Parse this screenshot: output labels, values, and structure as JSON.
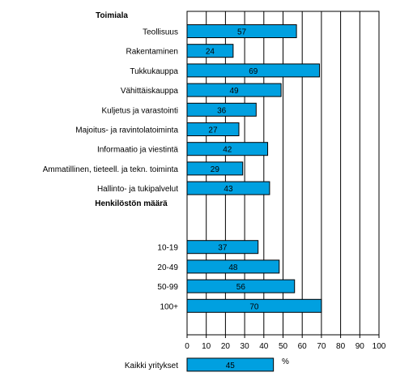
{
  "chart_data": {
    "type": "bar",
    "orientation": "horizontal",
    "groups": [
      {
        "title": "Toimiala",
        "categories": [
          "Teollisuus",
          "Rakentaminen",
          "Tukkukauppa",
          "Vähittäiskauppa",
          "Kuljetus ja varastointi",
          "Majoitus- ja ravintolatoiminta",
          "Informaatio ja viestintä",
          "Ammatillinen, tieteell. ja tekn. toiminta",
          "Hallinto- ja tukipalvelut"
        ],
        "values": [
          57,
          24,
          69,
          49,
          36,
          27,
          42,
          29,
          43
        ]
      },
      {
        "title": "Henkilöstön määrä",
        "categories": [
          "10-19",
          "20-49",
          "50-99",
          "100+"
        ],
        "values": [
          37,
          48,
          56,
          70
        ]
      },
      {
        "title": "",
        "categories": [
          "Kaikki yritykset"
        ],
        "values": [
          45
        ]
      }
    ],
    "xlabel": "%",
    "xlim": [
      0,
      100
    ],
    "xticks": [
      0,
      10,
      20,
      30,
      40,
      50,
      60,
      70,
      80,
      90,
      100
    ],
    "grid": "vertical",
    "bar_color": "#00a0e0",
    "bar_edge_color": "#000000"
  }
}
